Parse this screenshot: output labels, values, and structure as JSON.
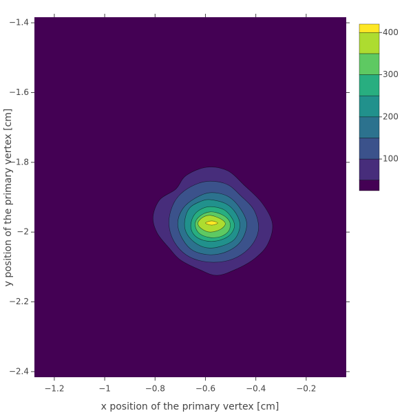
{
  "chart_data": {
    "type": "contour",
    "x_label": "x position of the primary vertex [cm]",
    "y_label": "y position of the primary vertex [cm]",
    "xlim": [
      -1.279,
      -0.041
    ],
    "ylim": [
      -2.416,
      -1.384
    ],
    "xticks": [
      {
        "value": -1.2,
        "label": "−1.2"
      },
      {
        "value": -1,
        "label": "−1"
      },
      {
        "value": -0.8,
        "label": "−0.8"
      },
      {
        "value": -0.6,
        "label": "−0.6"
      },
      {
        "value": -0.4,
        "label": "−0.4"
      },
      {
        "value": -0.2,
        "label": "−0.2"
      }
    ],
    "yticks": [
      {
        "value": -1.4,
        "label": "−1.4"
      },
      {
        "value": -1.6,
        "label": "−1.6"
      },
      {
        "value": -1.8,
        "label": "−1.8"
      },
      {
        "value": -2,
        "label": "−2"
      },
      {
        "value": -2.2,
        "label": "−2.2"
      },
      {
        "value": -2.4,
        "label": "−2.4"
      }
    ],
    "levels": [
      50,
      100,
      150,
      200,
      250,
      300,
      350,
      400
    ],
    "colors": [
      "#440154",
      "#472d7b",
      "#3b528b",
      "#2c728e",
      "#21918c",
      "#28ae80",
      "#5ec962",
      "#addc30",
      "#fde725"
    ],
    "zlim": [
      25,
      420
    ],
    "zticks": [
      100,
      200,
      300,
      400
    ],
    "contours": [
      {
        "x": [
          -0.595,
          -0.512,
          -0.444,
          -0.375,
          -0.334,
          -0.353,
          -0.403,
          -0.471,
          -0.553,
          -0.622,
          -0.699,
          -0.745,
          -0.792,
          -0.808,
          -0.781,
          -0.718,
          -0.677
        ],
        "y": [
          -1.814,
          -1.824,
          -1.867,
          -1.917,
          -1.976,
          -2.035,
          -2.075,
          -2.104,
          -2.124,
          -2.108,
          -2.08,
          -2.045,
          -2.002,
          -1.956,
          -1.907,
          -1.877,
          -1.838
        ]
      },
      {
        "x": [
          -0.581,
          -0.512,
          -0.458,
          -0.408,
          -0.389,
          -0.408,
          -0.458,
          -0.526,
          -0.608,
          -0.677,
          -0.726,
          -0.745,
          -0.732,
          -0.699,
          -0.641
        ],
        "y": [
          -1.854,
          -1.864,
          -1.897,
          -1.936,
          -1.986,
          -2.029,
          -2.065,
          -2.084,
          -2.084,
          -2.065,
          -2.025,
          -1.976,
          -1.927,
          -1.891,
          -1.864
        ]
      },
      {
        "x": [
          -0.581,
          -0.512,
          -0.463,
          -0.436,
          -0.458,
          -0.512,
          -0.581,
          -0.649,
          -0.69,
          -0.71,
          -0.69,
          -0.641
        ],
        "y": [
          -1.887,
          -1.897,
          -1.931,
          -1.976,
          -2.025,
          -2.055,
          -2.065,
          -2.053,
          -2.021,
          -1.976,
          -1.933,
          -1.903
        ]
      },
      {
        "x": [
          -0.581,
          -0.518,
          -0.479,
          -0.463,
          -0.485,
          -0.54,
          -0.595,
          -0.644,
          -0.677,
          -0.682,
          -0.663,
          -0.622
        ],
        "y": [
          -1.907,
          -1.919,
          -1.946,
          -1.982,
          -2.021,
          -2.041,
          -2.045,
          -2.029,
          -2,
          -1.966,
          -1.931,
          -1.913
        ]
      },
      {
        "x": [
          -0.581,
          -0.526,
          -0.493,
          -0.485,
          -0.507,
          -0.553,
          -0.6,
          -0.641,
          -0.658,
          -0.649,
          -0.622
        ],
        "y": [
          -1.927,
          -1.936,
          -1.962,
          -1.986,
          -2.011,
          -2.025,
          -2.025,
          -2.011,
          -1.986,
          -1.956,
          -1.936
        ]
      },
      {
        "x": [
          -0.581,
          -0.534,
          -0.504,
          -0.507,
          -0.54,
          -0.586,
          -0.627,
          -0.641,
          -0.622
        ],
        "y": [
          -1.942,
          -1.95,
          -1.97,
          -1.996,
          -2.013,
          -2.015,
          -2.002,
          -1.976,
          -1.954
        ]
      },
      {
        "x": [
          -0.581,
          -0.54,
          -0.521,
          -0.54,
          -0.581,
          -0.616,
          -0.63,
          -0.611
        ],
        "y": [
          -1.952,
          -1.962,
          -1.976,
          -1.992,
          -2,
          -1.99,
          -1.974,
          -1.958
        ]
      },
      {
        "x": [
          -0.6,
          -0.575,
          -0.551,
          -0.575
        ],
        "y": [
          -1.974,
          -1.968,
          -1.974,
          -1.98
        ]
      }
    ]
  }
}
